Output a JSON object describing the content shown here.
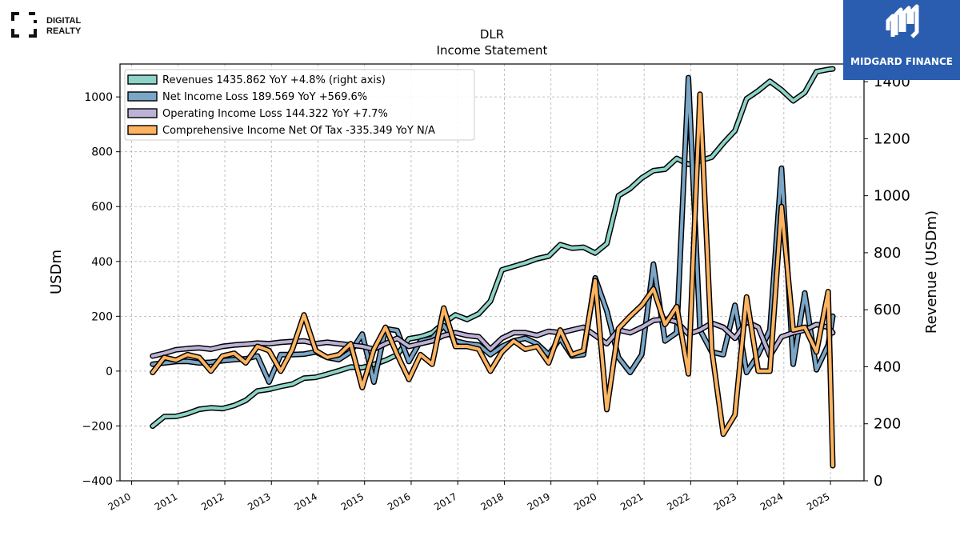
{
  "brand": {
    "left_logo_line1": "DIGITAL",
    "left_logo_line2": "REALTY",
    "right_logo_text": "MIDGARD FINANCE"
  },
  "colors": {
    "revenues": "#8dd3c7",
    "net_income": "#7aa6c8",
    "operating_income": "#bcb2d6",
    "comprehensive_income": "#fdb462",
    "brand_blue": "#2a5db0"
  },
  "chart_data": {
    "type": "line",
    "title": "DLR",
    "subtitle": "Income Statement",
    "ylabel": "USDm",
    "ylabel_right": "Revenue (USDm)",
    "ylim": [
      -400,
      1120
    ],
    "ylim_right": [
      0,
      1462
    ],
    "yticks": [
      -400,
      -200,
      0,
      200,
      400,
      600,
      800,
      1000
    ],
    "yticks_right": [
      0,
      200,
      400,
      600,
      800,
      1000,
      1200,
      1400
    ],
    "xticks": [
      "2010",
      "2011",
      "2012",
      "2013",
      "2014",
      "2015",
      "2016",
      "2017",
      "2018",
      "2019",
      "2020",
      "2021",
      "2022",
      "2023",
      "2024",
      "2025"
    ],
    "xlim": [
      2009.75,
      2025.72
    ],
    "grid": true,
    "legend_position": "top-left",
    "legend": [
      "Revenues  1435.862 YoY +4.8% (right axis)",
      "Net Income Loss  189.569 YoY +569.6%",
      "Operating Income Loss  144.322 YoY +7.7%",
      "Comprehensive Income Net Of Tax  -335.349 YoY N/A"
    ],
    "x": [
      2010.45,
      2010.7,
      2010.95,
      2011.2,
      2011.45,
      2011.7,
      2011.95,
      2012.2,
      2012.45,
      2012.7,
      2012.95,
      2013.2,
      2013.45,
      2013.7,
      2013.95,
      2014.2,
      2014.45,
      2014.7,
      2014.95,
      2015.2,
      2015.45,
      2015.7,
      2015.95,
      2016.2,
      2016.45,
      2016.7,
      2016.95,
      2017.2,
      2017.45,
      2017.7,
      2017.95,
      2018.2,
      2018.45,
      2018.7,
      2018.95,
      2019.2,
      2019.45,
      2019.7,
      2019.95,
      2020.2,
      2020.45,
      2020.7,
      2020.95,
      2021.2,
      2021.45,
      2021.7,
      2021.95,
      2022.2,
      2022.45,
      2022.7,
      2022.95,
      2023.2,
      2023.45,
      2023.7,
      2023.95,
      2024.2,
      2024.45,
      2024.7,
      2024.95,
      2025.05
    ],
    "series": [
      {
        "name": "Revenues",
        "axis": "right",
        "values": [
          192,
          225,
          226,
          236,
          251,
          256,
          253,
          264,
          282,
          315,
          321,
          331,
          339,
          360,
          363,
          374,
          386,
          399,
          397,
          408,
          423,
          442,
          498,
          505,
          519,
          553,
          582,
          566,
          586,
          630,
          740,
          752,
          764,
          779,
          788,
          828,
          816,
          819,
          799,
          832,
          1000,
          1025,
          1062,
          1088,
          1093,
          1131,
          1110,
          1123,
          1135,
          1184,
          1228,
          1340,
          1368,
          1401,
          1371,
          1333,
          1362,
          1435,
          1443,
          1445
        ]
      },
      {
        "name": "Net Income Loss",
        "axis": "left",
        "values": [
          25,
          30,
          35,
          36,
          30,
          32,
          38,
          42,
          45,
          55,
          -40,
          60,
          60,
          62,
          70,
          50,
          42,
          70,
          135,
          -40,
          155,
          148,
          35,
          110,
          120,
          165,
          110,
          100,
          95,
          60,
          90,
          110,
          120,
          100,
          60,
          120,
          55,
          60,
          340,
          220,
          50,
          -5,
          60,
          390,
          110,
          140,
          1070,
          150,
          70,
          60,
          240,
          -5,
          60,
          150,
          740,
          25,
          285,
          5,
          95,
          200
        ]
      },
      {
        "name": "Operating Income Loss",
        "axis": "left",
        "values": [
          55,
          65,
          78,
          82,
          85,
          80,
          90,
          95,
          98,
          102,
          100,
          105,
          108,
          110,
          100,
          105,
          100,
          95,
          90,
          80,
          100,
          120,
          90,
          100,
          110,
          130,
          140,
          130,
          125,
          80,
          120,
          140,
          140,
          130,
          145,
          140,
          150,
          160,
          130,
          100,
          150,
          140,
          160,
          185,
          190,
          180,
          135,
          150,
          175,
          160,
          120,
          180,
          160,
          55,
          125,
          140,
          150,
          170,
          160,
          140
        ]
      },
      {
        "name": "Comprehensive Income Net Of Tax",
        "axis": "left",
        "values": [
          -5,
          50,
          40,
          60,
          50,
          0,
          55,
          65,
          30,
          90,
          75,
          0,
          80,
          205,
          75,
          50,
          60,
          100,
          -60,
          80,
          160,
          60,
          -30,
          60,
          25,
          230,
          90,
          90,
          80,
          0,
          70,
          110,
          80,
          90,
          30,
          150,
          60,
          75,
          330,
          -140,
          155,
          200,
          240,
          300,
          170,
          235,
          -10,
          1010,
          80,
          -230,
          -160,
          270,
          0,
          0,
          600,
          150,
          160,
          70,
          290,
          -345
        ]
      }
    ]
  }
}
